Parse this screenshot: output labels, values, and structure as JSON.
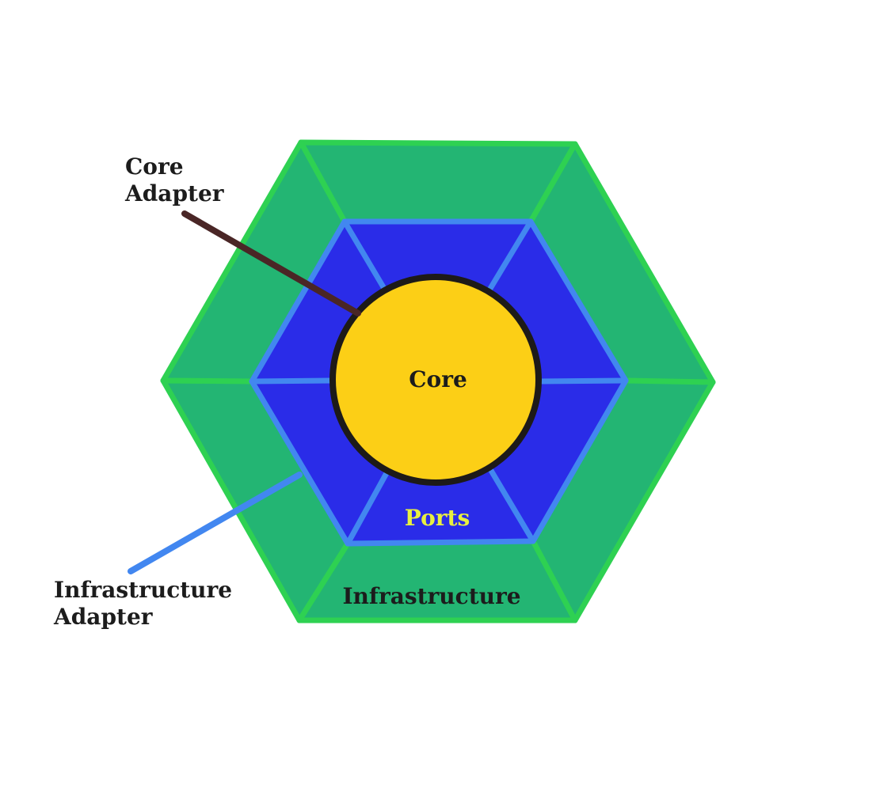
{
  "labels": {
    "core": "Core",
    "ports": "Ports",
    "infrastructure": "Infrastructure",
    "core_adapter_line1": "Core",
    "core_adapter_line2": "Adapter",
    "infra_adapter_line1": "Infrastructure",
    "infra_adapter_line2": "Adapter"
  },
  "colors": {
    "infrastructure_fill": "#23b573",
    "infrastructure_stroke": "#2ed152",
    "ports_fill": "#2a2ce8",
    "ports_stroke": "#4287f0",
    "core_fill": "#fccf16",
    "core_stroke": "#1d1a18",
    "core_adapter_line": "#4a2626",
    "infra_adapter_line": "#4287f0",
    "label_text": "#1c1c1c",
    "ports_text": "#e8f040"
  }
}
